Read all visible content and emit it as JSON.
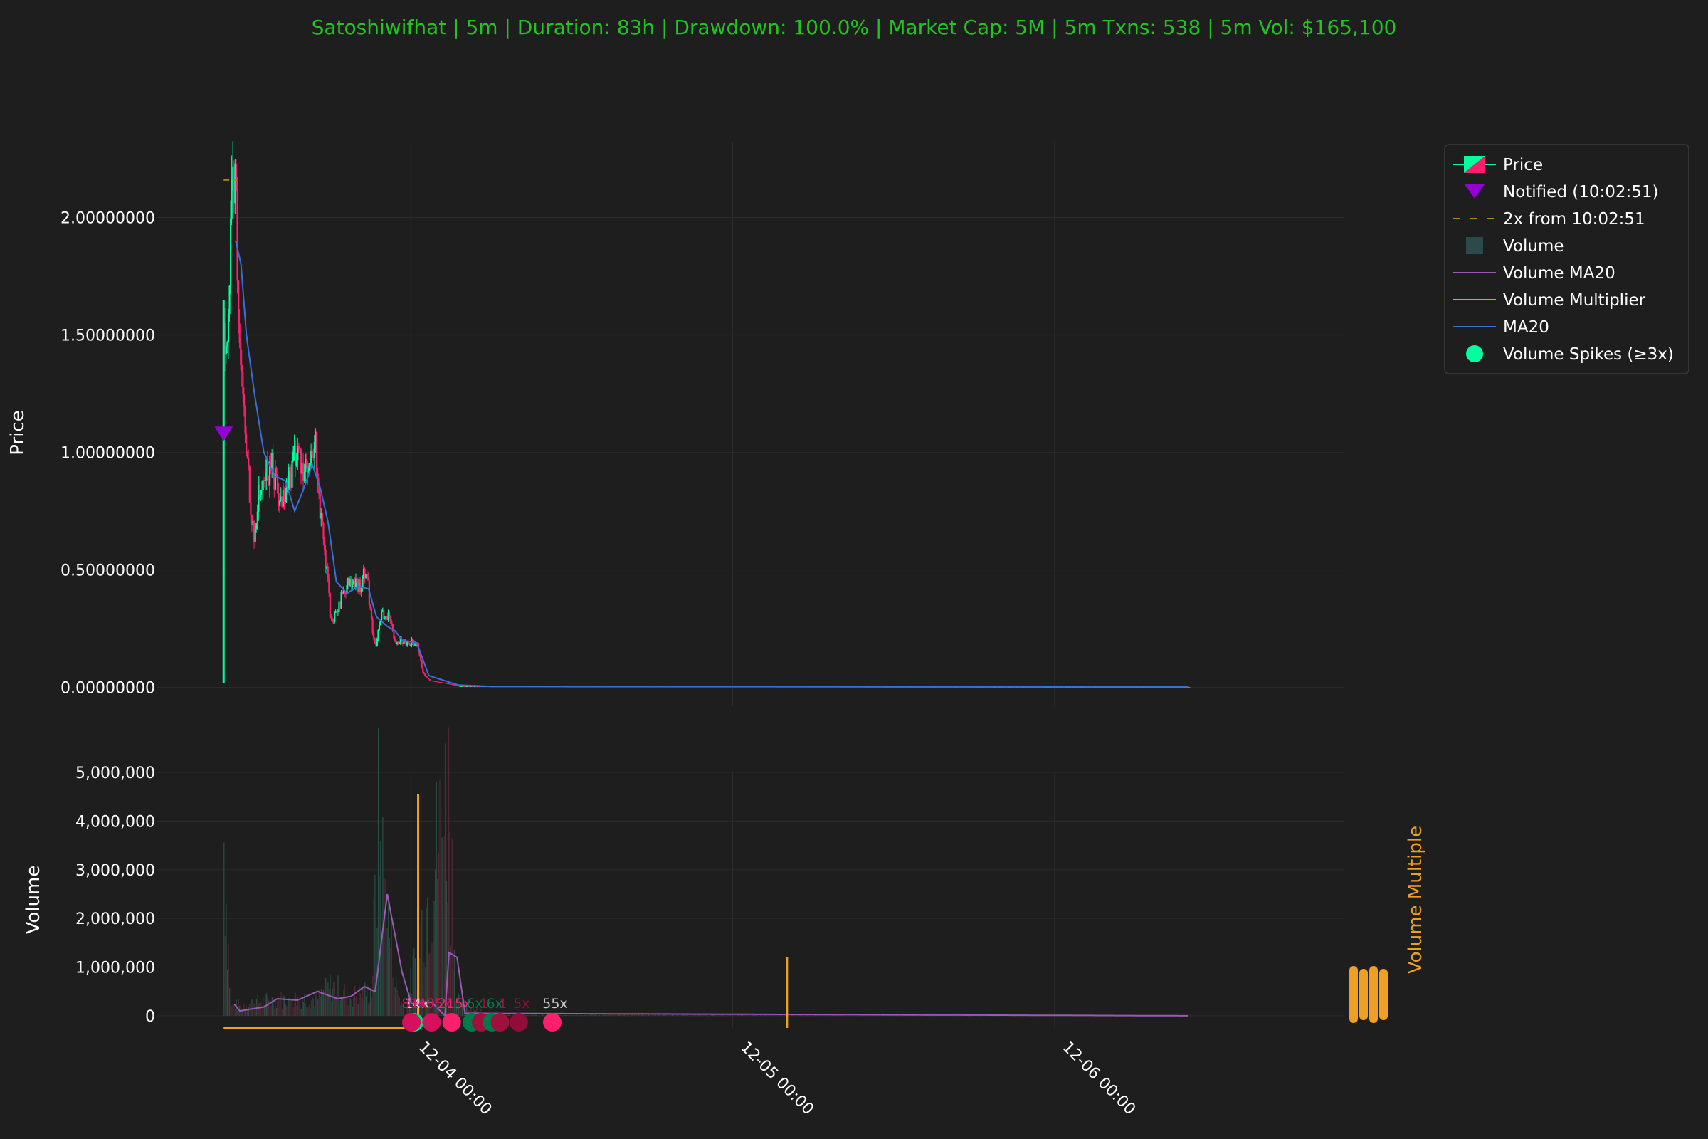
{
  "chart_data": {
    "type": "candlestick",
    "title": "Satoshiwifhat | 5m | Duration: 83h | Drawdown: 100.0% | Market Cap: 5M | 5m Txns: 538 | 5m Vol: $165,100",
    "price_panel": {
      "ylabel": "Price",
      "ylim": [
        -0.08,
        2.32
      ],
      "yticks": [
        0.0,
        0.5,
        1.0,
        1.5,
        2.0
      ],
      "ytick_labels": [
        "0.00000000",
        "0.50000000",
        "1.00000000",
        "1.50000000",
        "2.00000000"
      ],
      "price_anchor_points": [
        {
          "t": 0.0,
          "p": 1.55
        },
        {
          "t": 0.35,
          "p": 1.6
        },
        {
          "t": 0.55,
          "p": 2.0
        },
        {
          "t": 0.9,
          "p": 2.25
        },
        {
          "t": 1.0,
          "p": 1.5
        },
        {
          "t": 1.25,
          "p": 1.35
        },
        {
          "t": 1.5,
          "p": 1.1
        },
        {
          "t": 1.9,
          "p": 0.85
        },
        {
          "t": 2.2,
          "p": 0.6
        },
        {
          "t": 2.5,
          "p": 0.8
        },
        {
          "t": 3.0,
          "p": 0.9
        },
        {
          "t": 3.6,
          "p": 0.95
        },
        {
          "t": 4.2,
          "p": 0.78
        },
        {
          "t": 4.6,
          "p": 0.85
        },
        {
          "t": 5.3,
          "p": 1.0
        },
        {
          "t": 5.9,
          "p": 0.95
        },
        {
          "t": 6.3,
          "p": 0.9
        },
        {
          "t": 6.8,
          "p": 1.02
        },
        {
          "t": 7.2,
          "p": 0.7
        },
        {
          "t": 7.6,
          "p": 0.5
        },
        {
          "t": 8.0,
          "p": 0.25
        },
        {
          "t": 8.5,
          "p": 0.35
        },
        {
          "t": 9.2,
          "p": 0.45
        },
        {
          "t": 10.0,
          "p": 0.42
        },
        {
          "t": 10.6,
          "p": 0.52
        },
        {
          "t": 11.0,
          "p": 0.25
        },
        {
          "t": 11.3,
          "p": 0.18
        },
        {
          "t": 11.7,
          "p": 0.32
        },
        {
          "t": 12.2,
          "p": 0.3
        },
        {
          "t": 12.8,
          "p": 0.2
        },
        {
          "t": 14.4,
          "p": 0.19
        },
        {
          "t": 14.8,
          "p": 0.06
        },
        {
          "t": 15.3,
          "p": 0.03
        },
        {
          "t": 16.8,
          "p": 0.015
        },
        {
          "t": 17.5,
          "p": 0.005
        },
        {
          "t": 48.0,
          "p": 0.003
        },
        {
          "t": 72.0,
          "p": 0.002
        }
      ],
      "ma20_anchor_points": [
        {
          "t": 0.9,
          "p": 1.9
        },
        {
          "t": 1.3,
          "p": 1.8
        },
        {
          "t": 1.7,
          "p": 1.5
        },
        {
          "t": 2.3,
          "p": 1.25
        },
        {
          "t": 3.0,
          "p": 1.0
        },
        {
          "t": 3.8,
          "p": 0.9
        },
        {
          "t": 4.6,
          "p": 0.88
        },
        {
          "t": 5.3,
          "p": 0.75
        },
        {
          "t": 6.0,
          "p": 0.85
        },
        {
          "t": 6.6,
          "p": 0.95
        },
        {
          "t": 7.2,
          "p": 0.85
        },
        {
          "t": 7.8,
          "p": 0.7
        },
        {
          "t": 8.4,
          "p": 0.45
        },
        {
          "t": 9.2,
          "p": 0.4
        },
        {
          "t": 10.0,
          "p": 0.43
        },
        {
          "t": 10.8,
          "p": 0.42
        },
        {
          "t": 11.4,
          "p": 0.3
        },
        {
          "t": 12.2,
          "p": 0.26
        },
        {
          "t": 12.8,
          "p": 0.24
        },
        {
          "t": 13.3,
          "p": 0.2
        },
        {
          "t": 14.4,
          "p": 0.19
        },
        {
          "t": 15.3,
          "p": 0.05
        },
        {
          "t": 17.5,
          "p": 0.01
        },
        {
          "t": 20.0,
          "p": 0.004
        },
        {
          "t": 72.0,
          "p": 0.002
        }
      ],
      "notified_marker": {
        "t": 0.0,
        "p": 1.08,
        "time": "10:02:51"
      },
      "two_x_line": {
        "t_start": 0.0,
        "t_end": 1.0,
        "p": 2.16
      }
    },
    "volume_panel": {
      "ylabel": "Volume",
      "ylabel_right": "Volume Multiple",
      "ylim": [
        -250000,
        5000000
      ],
      "yticks": [
        0,
        1000000,
        2000000,
        3000000,
        4000000,
        5000000
      ],
      "ytick_labels": [
        "0",
        "1,000,000",
        "2,000,000",
        "3,000,000",
        "4,000,000",
        "5,000,000"
      ],
      "volume_anchor_points": [
        {
          "t": 0.0,
          "v": 3600000
        },
        {
          "t": 0.5,
          "v": 200000
        },
        {
          "t": 3.0,
          "v": 300000
        },
        {
          "t": 5.0,
          "v": 350000
        },
        {
          "t": 7.0,
          "v": 350000
        },
        {
          "t": 8.0,
          "v": 600000
        },
        {
          "t": 9.5,
          "v": 400000
        },
        {
          "t": 11.0,
          "v": 500000
        },
        {
          "t": 11.5,
          "v": 3800000
        },
        {
          "t": 12.0,
          "v": 2500000
        },
        {
          "t": 12.8,
          "v": 600000
        },
        {
          "t": 13.5,
          "v": 60000
        },
        {
          "t": 16.8,
          "v": 4600000
        },
        {
          "t": 17.3,
          "v": 300000
        },
        {
          "t": 20.0,
          "v": 30000
        },
        {
          "t": 72.0,
          "v": 10000
        }
      ],
      "volume_ma20_anchor_points": [
        {
          "t": 0.8,
          "v": 240000
        },
        {
          "t": 1.2,
          "v": 100000
        },
        {
          "t": 3.0,
          "v": 180000
        },
        {
          "t": 4.0,
          "v": 350000
        },
        {
          "t": 5.5,
          "v": 320000
        },
        {
          "t": 7.0,
          "v": 500000
        },
        {
          "t": 8.5,
          "v": 350000
        },
        {
          "t": 9.5,
          "v": 400000
        },
        {
          "t": 10.5,
          "v": 600000
        },
        {
          "t": 11.3,
          "v": 500000
        },
        {
          "t": 12.2,
          "v": 2500000
        },
        {
          "t": 13.3,
          "v": 900000
        },
        {
          "t": 14.0,
          "v": 250000
        },
        {
          "t": 15.5,
          "v": 280000
        },
        {
          "t": 16.5,
          "v": 0
        },
        {
          "t": 16.8,
          "v": 1300000
        },
        {
          "t": 17.4,
          "v": 1200000
        },
        {
          "t": 18.0,
          "v": 50000
        },
        {
          "t": 72.0,
          "v": 0
        }
      ],
      "multiplier_spikes": [
        {
          "t": 14.5,
          "v": 4550000
        },
        {
          "t": 42.0,
          "v": 1200000
        }
      ],
      "multiplier_baseline": -250000,
      "volume_spike_markers": [
        {
          "t": 14.2,
          "label": "14x",
          "color": "#00e08a",
          "label_color": "#cccccc"
        },
        {
          "t": 14.0,
          "label": "81x",
          "color": "#d6105c",
          "label_color": "#d6105c"
        },
        {
          "t": 15.5,
          "label": "495x",
          "color": "#d6105c",
          "label_color": "#d6105c"
        },
        {
          "t": 17.0,
          "label": "215x",
          "color": "#ff1f6d",
          "label_color": "#ff1f6d"
        },
        {
          "t": 18.5,
          "label": "6x",
          "color": "#007a4a",
          "label_color": "#007a4a"
        },
        {
          "t": 19.2,
          "label": "1",
          "color": "#a0103f",
          "label_color": "#a0103f"
        },
        {
          "t": 20.0,
          "label": "6x",
          "color": "#007a4a",
          "label_color": "#007a4a"
        },
        {
          "t": 20.6,
          "label": "1",
          "color": "#a0103f",
          "label_color": "#a0103f"
        },
        {
          "t": 22.0,
          "label": "5x",
          "color": "#900d3a",
          "label_color": "#900d3a"
        },
        {
          "t": 24.5,
          "label": "55x",
          "color": "#ff1f6d",
          "label_color": "#cccccc"
        }
      ]
    },
    "xticks": [
      {
        "t": 13.95,
        "label": "12-04 00:00"
      },
      {
        "t": 37.95,
        "label": "12-05 00:00"
      },
      {
        "t": 61.95,
        "label": "12-06 00:00"
      }
    ],
    "x_range_hours": [
      -5.0,
      83.5
    ],
    "legend": {
      "position": "top-right",
      "items": [
        "Price",
        "Notified (10:02:51)",
        "2x from 10:02:51",
        "Volume",
        "Volume MA20",
        "Volume Multiplier",
        "MA20",
        "Volume Spikes (≥3x)"
      ]
    },
    "colors": {
      "background": "#1e1e1e",
      "title": "#22c322",
      "up": "#00ff9f",
      "down": "#ff1f6d",
      "ma20": "#3a6fd8",
      "volume_ma20": "#9b59b6",
      "multiplier": "#f0a020",
      "notified": "#9400d3",
      "two_x": "#b8860b",
      "grid": "#2c2c2c",
      "volume_bar": "#2d4a4a"
    }
  }
}
